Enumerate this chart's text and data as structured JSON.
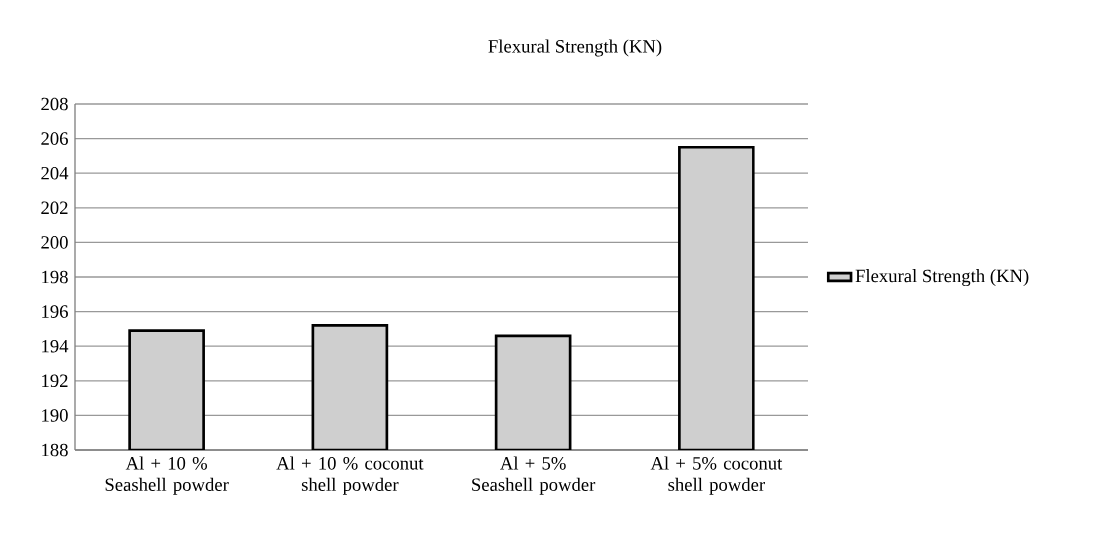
{
  "chart_data": {
    "type": "bar",
    "title": "Flexural Strength (KN)",
    "categories": [
      "Al + 10 % Seashell powder",
      "Al + 10 % coconut shell powder",
      "Al + 5% Seashell powder",
      "Al + 5% coconut shell powder"
    ],
    "series": [
      {
        "name": "Flexural Strength (KN)",
        "color": "#cfcfcf",
        "values": [
          194.9,
          195.2,
          194.6,
          205.5
        ]
      }
    ],
    "ylim": [
      188,
      208
    ],
    "yticks": [
      188,
      190,
      192,
      194,
      196,
      198,
      200,
      202,
      204,
      206,
      208
    ],
    "grid": "y",
    "legend": "right"
  }
}
